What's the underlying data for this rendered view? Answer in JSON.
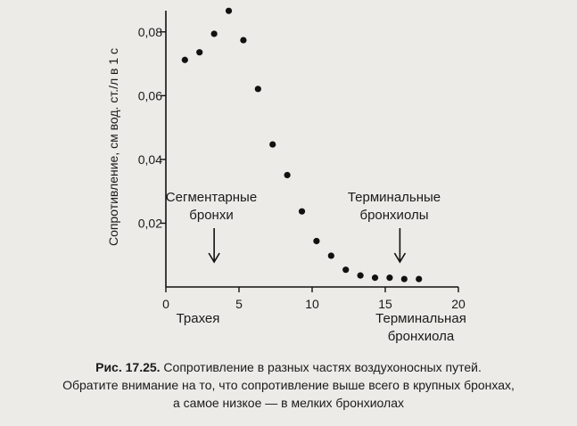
{
  "chart_data": {
    "type": "scatter",
    "ylabel": "Сопротивление, см вод. ст./л в 1 с",
    "xlabel": "",
    "xlim": [
      0,
      20
    ],
    "ylim": [
      0,
      0.09
    ],
    "x_ticks": [
      0,
      5,
      10,
      15,
      20
    ],
    "x_tick_labels": [
      "0",
      "5",
      "10",
      "15",
      "20"
    ],
    "y_ticks": [
      0.02,
      0.04,
      0.06,
      0.08
    ],
    "y_tick_labels": [
      "0,02",
      "0,04",
      "0,06",
      "0,08"
    ],
    "x": [
      1.3,
      2.3,
      3.3,
      4.3,
      5.3,
      6.3,
      7.3,
      8.3,
      9.3,
      10.3,
      11.3,
      12.3,
      13.3,
      14.3,
      15.3,
      16.3,
      17.3
    ],
    "y": [
      0.0712,
      0.0736,
      0.0794,
      0.0866,
      0.0774,
      0.0621,
      0.0447,
      0.0351,
      0.0237,
      0.0144,
      0.0098,
      0.0054,
      0.0036,
      0.0029,
      0.0029,
      0.0025,
      0.0025
    ],
    "annotations": [
      {
        "text_lines": [
          "Сегментарные",
          "бронхи"
        ],
        "arrow_x": 3.3
      },
      {
        "text_lines": [
          "Терминальные",
          "бронхиолы"
        ],
        "arrow_x": 16.0
      }
    ],
    "x_annotations": [
      {
        "text_lines": [
          "Трахея"
        ]
      },
      {
        "text_lines": [
          "Терминальная",
          "бронхиола"
        ]
      }
    ]
  },
  "caption": {
    "label": "Рис. 17.25.",
    "line1_rest": " Сопротивление в разных частях воздухоносных путей.",
    "line2": "Обратите внимание на то, что сопротивление выше всего в крупных бронхах,",
    "line3": "а самое низкое — в мелких бронхиолах"
  }
}
